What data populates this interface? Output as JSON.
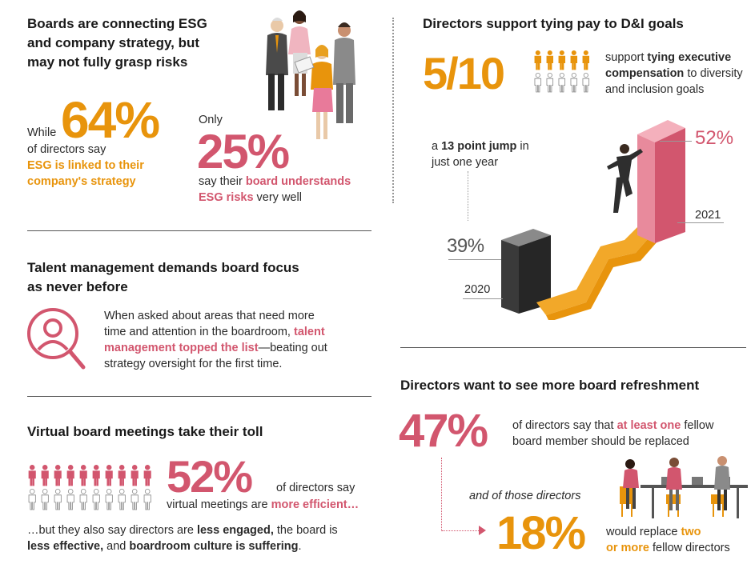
{
  "section1": {
    "heading_lines": [
      "Boards are connecting ESG",
      "and company strategy, but",
      "may not fully grasp risks"
    ],
    "stat1": {
      "prefix": "While",
      "value": "64%",
      "text": "of directors say",
      "highlight_line1": "ESG is linked to their",
      "highlight_line2": "company's strategy"
    },
    "stat2": {
      "prefix": "Only",
      "value": "25%",
      "text_pre": "say their ",
      "highlight_line1": "board understands",
      "highlight_line2": "ESG risks",
      "text_post": " very well"
    }
  },
  "section2": {
    "heading_lines": [
      "Talent management demands board focus",
      "as never before"
    ],
    "body_line1": "When asked about areas that need more",
    "body_line2_pre": "time and attention in the boardroom, ",
    "body_line2_hl": "talent",
    "body_line3_hl": "management topped the list",
    "body_line3_post": "—beating out",
    "body_line4": "strategy oversight for the first time."
  },
  "section3": {
    "heading": "Virtual board meetings take their toll",
    "value": "52%",
    "text1": "of directors say",
    "text2_pre": "virtual meetings are ",
    "text2_hl": "more efficient…",
    "bottom_line1_pre": "…but they also say directors are ",
    "bottom_line1_b": "less engaged,",
    "bottom_line1_post": " the board is",
    "bottom_line2_b1": "less effective,",
    "bottom_line2_mid": " and ",
    "bottom_line2_b2": "boardroom culture is suffering",
    "bottom_line2_post": ".",
    "filled_people": 10.5,
    "total_people": 20
  },
  "section4": {
    "heading": "Directors support tying pay to D&I goals",
    "value": "5/10",
    "text_line1_pre": "support ",
    "text_line1_b": "tying executive",
    "text_line2_b": "compensation",
    "text_line2_post": " to diversity",
    "text_line3": "and inclusion goals",
    "filled_people": 5,
    "total_people": 10,
    "jump_line1_pre": "a ",
    "jump_line1_b": "13 point jump",
    "jump_line1_post": " in",
    "jump_line2": "just one year",
    "bar_2020_value": "39%",
    "bar_2020_year": "2020",
    "bar_2021_value": "52%",
    "bar_2021_year": "2021"
  },
  "section5": {
    "heading": "Directors want to see more board refreshment",
    "value1": "47%",
    "text1_pre": "of directors say that ",
    "text1_hl": "at least one",
    "text1_post": " fellow",
    "text2": "board member should be replaced",
    "italic": "and of those directors",
    "value2": "18%",
    "text3_pre": "would replace ",
    "text3_hl": "two",
    "text4_hl": "or more",
    "text4_post": " fellow directors"
  },
  "colors": {
    "orange": "#e8940c",
    "pink": "#d2566e",
    "dark": "#1a1a1a"
  }
}
